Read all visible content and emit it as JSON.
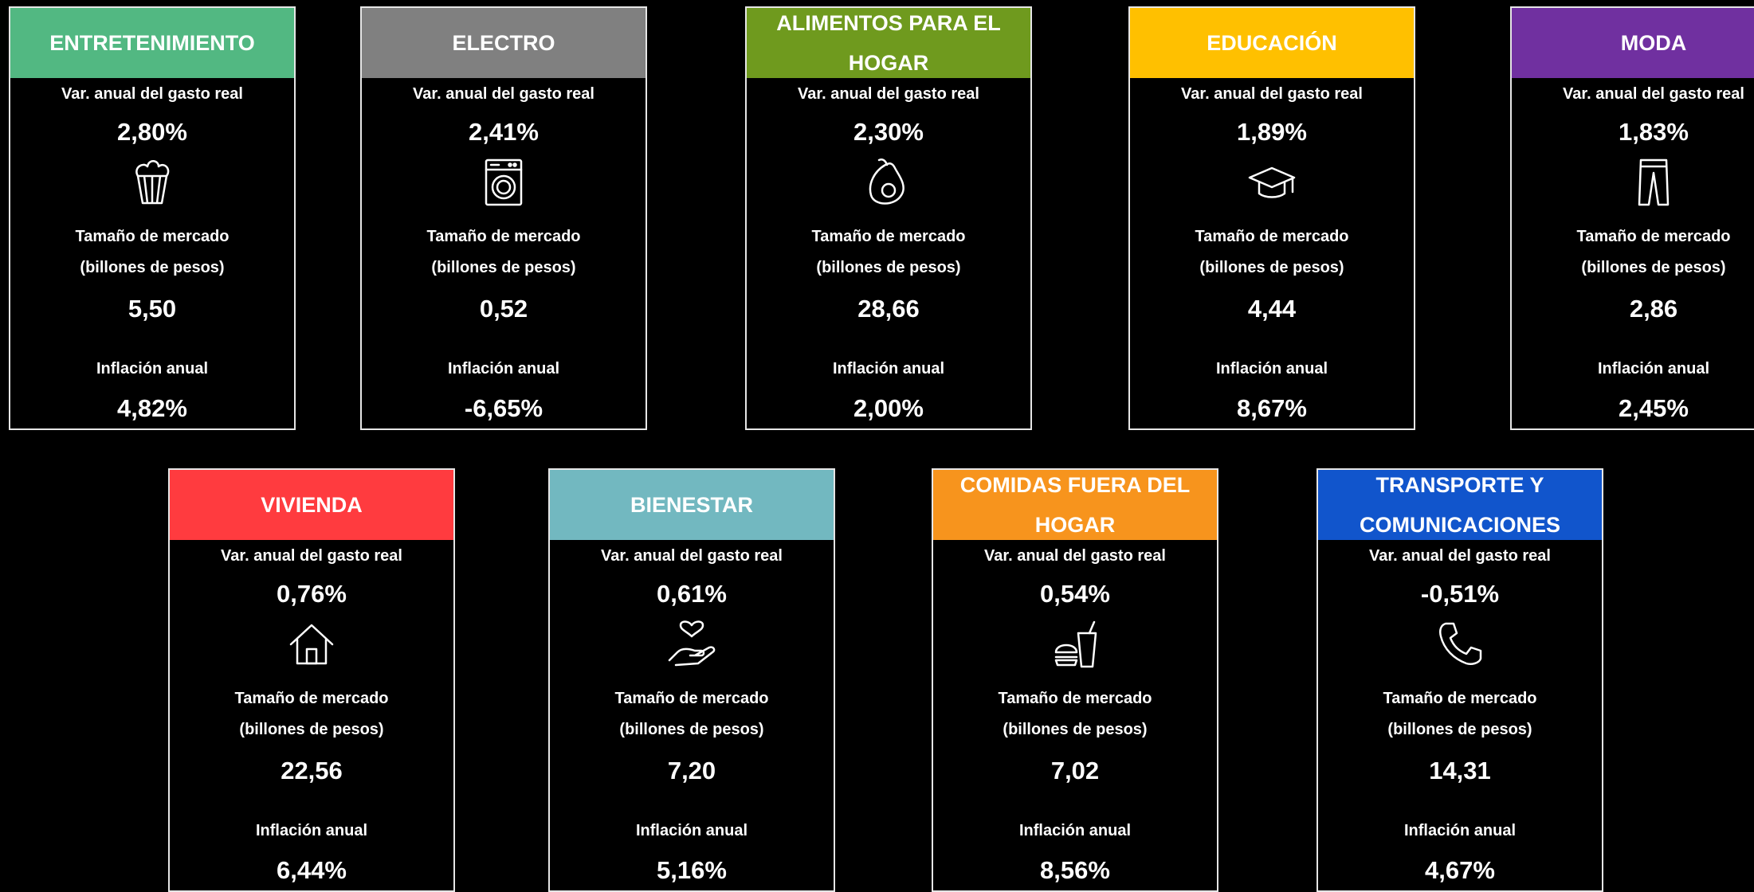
{
  "labels": {
    "growth": "Var. anual del gasto real",
    "size_1": "Tamaño de mercado",
    "size_2": "(billones de pesos)",
    "inflation": "Inflación anual"
  },
  "cards": [
    {
      "title": "ENTRETENIMIENTO",
      "color": "#52b882",
      "growth": "2,80%",
      "size": "5,50",
      "inflation": "4,82%"
    },
    {
      "title": "ELECTRO",
      "color": "#808080",
      "growth": "2,41%",
      "size": "0,52",
      "inflation": "-6,65%"
    },
    {
      "title": "ALIMENTOS PARA EL HOGAR",
      "color": "#6f9a1e",
      "growth": "2,30%",
      "size": "28,66",
      "inflation": "2,00%"
    },
    {
      "title": "EDUCACIÓN",
      "color": "#ffc000",
      "growth": "1,89%",
      "size": "4,44",
      "inflation": "8,67%"
    },
    {
      "title": "MODA",
      "color": "#7030a0",
      "growth": "1,83%",
      "size": "2,86",
      "inflation": "2,45%"
    },
    {
      "title": "VIVIENDA",
      "color": "#ff3b3f",
      "growth": "0,76%",
      "size": "22,56",
      "inflation": "6,44%"
    },
    {
      "title": "BIENESTAR",
      "color": "#72b8c0",
      "growth": "0,61%",
      "size": "7,20",
      "inflation": "5,16%"
    },
    {
      "title": "COMIDAS FUERA DEL HOGAR",
      "color": "#f7941d",
      "growth": "0,54%",
      "size": "7,02",
      "inflation": "8,56%"
    },
    {
      "title": "TRANSPORTE Y COMUNICACIONES",
      "color": "#1155cc",
      "growth": "-0,51%",
      "size": "14,31",
      "inflation": "4,67%"
    }
  ]
}
